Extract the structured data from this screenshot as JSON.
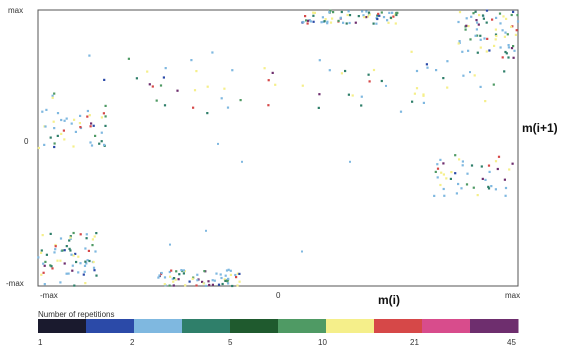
{
  "chart_data": {
    "type": "heatmap",
    "xlabel": "m(i)",
    "ylabel": "m(i+1)",
    "x_ticks": [
      "-max",
      "0",
      "max"
    ],
    "y_ticks": [
      "max",
      "0",
      "-max"
    ],
    "xlim": [
      -1,
      1
    ],
    "ylim": [
      -1,
      1
    ],
    "grid": false,
    "legend": {
      "title": "Number of repetitions",
      "placement": "bottom",
      "ticks": [
        "1",
        "2",
        "5",
        "10",
        "21",
        "45"
      ],
      "colors": [
        "#1a1a2e",
        "#2b4aa8",
        "#7fb8e0",
        "#2f7f6a",
        "#1f5a2e",
        "#4f9a64",
        "#f5ef8a",
        "#d64848",
        "#d84c8c",
        "#6e2e6e"
      ]
    },
    "clusters": [
      {
        "region": "top-left center",
        "x": [
          -0.95,
          0.95
        ],
        "y": [
          0.25,
          0.7
        ],
        "intensity": "high"
      },
      {
        "region": "top",
        "x": [
          0.1,
          0.5
        ],
        "y": [
          0.9,
          1.0
        ],
        "intensity": "high"
      },
      {
        "region": "top-right",
        "x": [
          0.75,
          1.0
        ],
        "y": [
          0.65,
          1.0
        ],
        "intensity": "high"
      },
      {
        "region": "mid-left",
        "x": [
          -1.0,
          -0.7
        ],
        "y": [
          0.0,
          0.3
        ],
        "intensity": "medium"
      },
      {
        "region": "mid-right",
        "x": [
          0.65,
          1.0
        ],
        "y": [
          -0.35,
          -0.05
        ],
        "intensity": "medium"
      },
      {
        "region": "bottom-left",
        "x": [
          -1.0,
          -0.75
        ],
        "y": [
          -1.0,
          -0.6
        ],
        "intensity": "high"
      },
      {
        "region": "bottom",
        "x": [
          -0.5,
          -0.15
        ],
        "y": [
          -1.0,
          -0.88
        ],
        "intensity": "high"
      }
    ]
  }
}
